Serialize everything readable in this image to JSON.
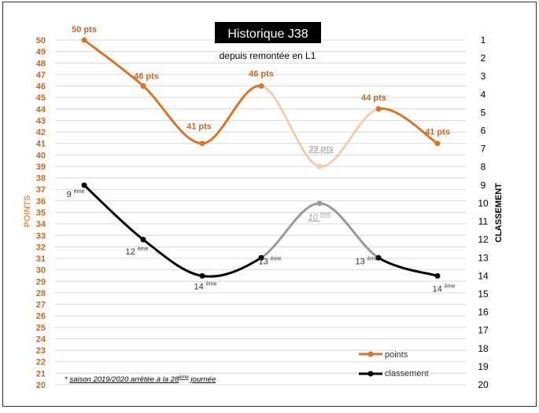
{
  "chart_data": {
    "type": "line",
    "title": "Historique J38",
    "subtitle": "depuis remontée en L1",
    "ylabel_left": "POINTS",
    "ylabel_right": "CLASSEMENT",
    "ylim_left": [
      20,
      50
    ],
    "ylim_right": [
      1,
      20
    ],
    "yticks_left": [
      "20",
      "21",
      "22",
      "23",
      "24",
      "25",
      "26",
      "27",
      "28",
      "29",
      "30",
      "31",
      "32",
      "33",
      "34",
      "35",
      "36",
      "37",
      "38",
      "39",
      "40",
      "41",
      "42",
      "43",
      "44",
      "45",
      "46",
      "47",
      "48",
      "49",
      "50"
    ],
    "yticks_right": [
      "1",
      "2",
      "3",
      "4",
      "5",
      "6",
      "7",
      "8",
      "9",
      "10",
      "11",
      "12",
      "13",
      "14",
      "15",
      "16",
      "17",
      "18",
      "19",
      "20"
    ],
    "grid": true,
    "legend_position": "bottom-right",
    "colors": {
      "points": "#D9742B",
      "points_faded": "#F2CDB0",
      "classement": "#000000",
      "classement_faded": "#9A9A9A",
      "axis_text_left": "#C06A2A",
      "grid": "#D9D9D9"
    },
    "series": [
      {
        "name": "points",
        "axis": "left",
        "values": [
          50,
          46,
          41,
          46,
          39,
          44,
          41
        ],
        "labels": [
          "50 pts",
          "46 pts",
          "41 pts",
          "46 pts",
          "39 pts",
          "44 pts",
          "41 pts"
        ]
      },
      {
        "name": "classement",
        "axis": "right",
        "values": [
          9,
          12,
          14,
          13,
          10,
          13,
          14
        ],
        "labels": [
          "9",
          "12",
          "14",
          "13",
          "10",
          "13",
          "14"
        ],
        "label_suffix": "ème"
      }
    ],
    "faded_point_index": 4,
    "footnote": {
      "prefix": "* ",
      "text": "saison 2019/2020 arrêtée à la 28",
      "sup": "ème",
      "suffix": " journée"
    }
  }
}
